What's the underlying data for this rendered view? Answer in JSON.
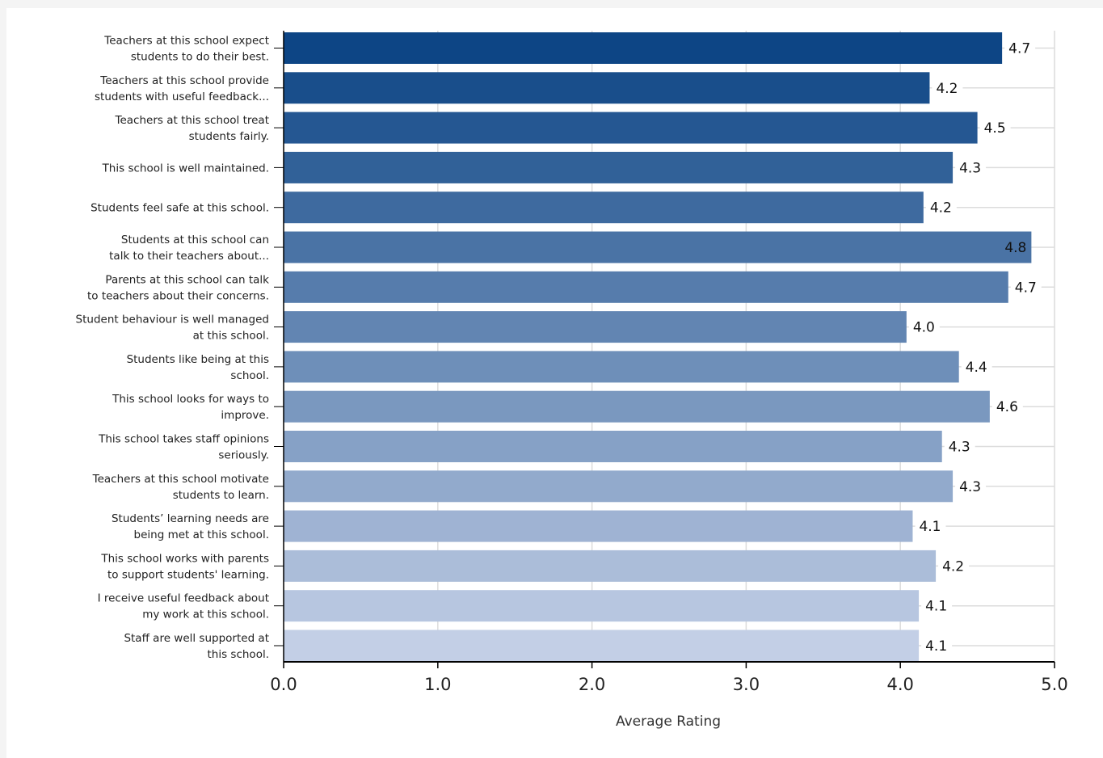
{
  "chart_data": {
    "type": "bar",
    "orientation": "horizontal",
    "categories": [
      [
        "Teachers at this school expect",
        "students to do their best."
      ],
      [
        "Teachers at this school provide",
        "students with useful feedback..."
      ],
      [
        "Teachers at this school treat",
        "students fairly."
      ],
      [
        "This school is well maintained."
      ],
      [
        "Students feel safe at this school."
      ],
      [
        "Students at this school can",
        "talk to their teachers about..."
      ],
      [
        "Parents at this school can talk",
        "to teachers about their concerns."
      ],
      [
        "Student behaviour is well managed",
        "at this school."
      ],
      [
        "Students like being at this",
        "school."
      ],
      [
        "This school looks for ways to",
        "improve."
      ],
      [
        "This school takes staff opinions",
        "seriously."
      ],
      [
        "Teachers at this school motivate",
        "students to learn."
      ],
      [
        "Students’ learning needs are",
        "being met at this school."
      ],
      [
        "This school works with parents",
        "to support students' learning."
      ],
      [
        "I receive useful feedback about",
        "my work at this school."
      ],
      [
        "Staff are well supported at",
        "this school."
      ]
    ],
    "values": [
      4.66,
      4.19,
      4.5,
      4.34,
      4.15,
      4.85,
      4.7,
      4.04,
      4.38,
      4.58,
      4.27,
      4.34,
      4.08,
      4.23,
      4.12,
      4.12
    ],
    "value_labels": [
      "4.7",
      "4.2",
      "4.5",
      "4.3",
      "4.2",
      "4.8",
      "4.7",
      "4.0",
      "4.4",
      "4.6",
      "4.3",
      "4.3",
      "4.1",
      "4.2",
      "4.1",
      "4.1"
    ],
    "xlim": [
      0,
      5
    ],
    "xticks": [
      "0.0",
      "1.0",
      "2.0",
      "3.0",
      "4.0",
      "5.0"
    ],
    "xlabel": "Average Rating",
    "ylabel": "",
    "title": "",
    "grid": true,
    "colors": {
      "bar_start": "#0d4585",
      "bar_end": "#c3cfe6",
      "grid": "#dcdcdc",
      "axis": "#000000"
    }
  }
}
